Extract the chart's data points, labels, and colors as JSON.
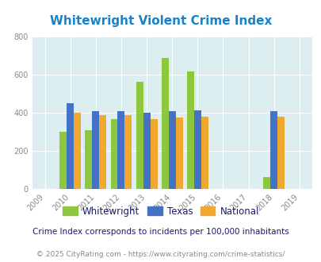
{
  "title": "Whitewright Violent Crime Index",
  "subtitle": "Crime Index corresponds to incidents per 100,000 inhabitants",
  "footer": "© 2025 CityRating.com - https://www.cityrating.com/crime-statistics/",
  "years": [
    2009,
    2010,
    2011,
    2012,
    2013,
    2014,
    2015,
    2016,
    2017,
    2018,
    2019
  ],
  "data_years": [
    2010,
    2011,
    2012,
    2013,
    2014,
    2015,
    2018
  ],
  "whitewright": [
    300,
    308,
    365,
    562,
    686,
    618,
    60
  ],
  "texas": [
    450,
    407,
    407,
    400,
    406,
    412,
    410
  ],
  "national": [
    400,
    387,
    387,
    365,
    375,
    380,
    379
  ],
  "bar_width": 0.28,
  "color_whitewright": "#8dc63f",
  "color_texas": "#4472c4",
  "color_national": "#f0a830",
  "bg_color": "#ddeef0",
  "ylim": [
    0,
    800
  ],
  "yticks": [
    0,
    200,
    400,
    600,
    800
  ],
  "title_color": "#1a82c8",
  "subtitle_color": "#1a1a6e",
  "footer_color": "#888888",
  "legend_labels": [
    "Whitewright",
    "Texas",
    "National"
  ],
  "legend_label_colors": [
    "#1a1a6e",
    "#1a82c8",
    "#888888"
  ]
}
